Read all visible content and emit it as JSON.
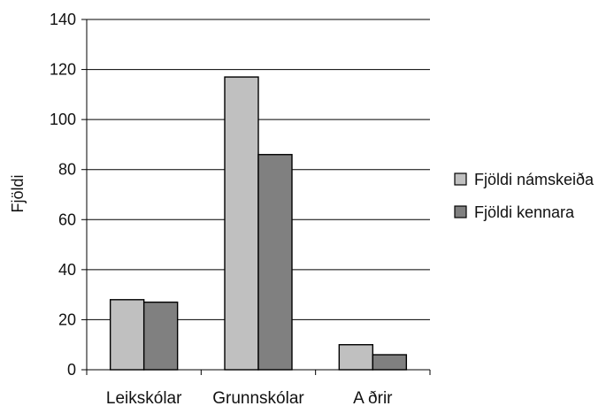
{
  "chart_data": {
    "type": "bar",
    "categories": [
      "Leikskólar",
      "Grunnskólar",
      "A ðrir"
    ],
    "series": [
      {
        "name": "Fjöldi námskeiða",
        "values": [
          28,
          117,
          10
        ],
        "color": "#c0c0c0"
      },
      {
        "name": "Fjöldi kennara",
        "values": [
          27,
          86,
          6
        ],
        "color": "#808080"
      }
    ],
    "ylabel": "Fjöldi",
    "xlabel": "",
    "ylim": [
      0,
      140
    ],
    "yticks": [
      0,
      20,
      40,
      60,
      80,
      100,
      120,
      140
    ],
    "grid": true,
    "legend": "right"
  }
}
